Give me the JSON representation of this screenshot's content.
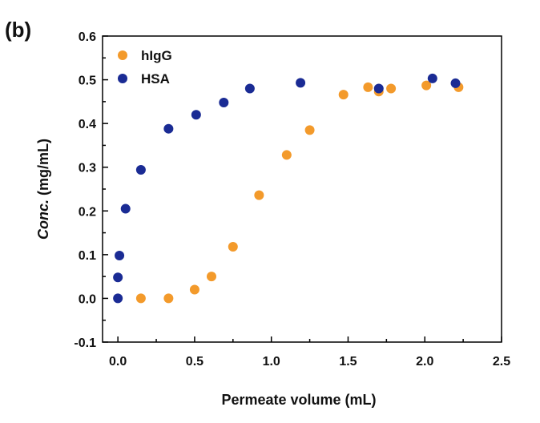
{
  "panel_label": "(b)",
  "chart_data": {
    "type": "scatter",
    "xlabel": "Permeate volume (mL)",
    "ylabel_prefix": "Conc.",
    "ylabel_suffix": " (mg/mL)",
    "xlim": [
      -0.1,
      2.5
    ],
    "ylim": [
      -0.1,
      0.6
    ],
    "x_ticks": [
      0.0,
      0.5,
      1.0,
      1.5,
      2.0,
      2.5
    ],
    "x_tick_labels": [
      "0.0",
      "0.5",
      "1.0",
      "1.5",
      "2.0",
      "2.5"
    ],
    "y_ticks": [
      -0.1,
      0.0,
      0.1,
      0.2,
      0.3,
      0.4,
      0.5,
      0.6
    ],
    "y_tick_labels": [
      "-0.1",
      "0.0",
      "0.1",
      "0.2",
      "0.3",
      "0.4",
      "0.5",
      "0.6"
    ],
    "grid": false,
    "legend_position": "top-left",
    "series": [
      {
        "name": "hIgG",
        "color": "#f39a2b",
        "x": [
          0.15,
          0.33,
          0.5,
          0.61,
          0.75,
          0.92,
          1.1,
          1.25,
          1.47,
          1.63,
          1.7,
          1.78,
          2.01,
          2.22
        ],
        "y": [
          0.0,
          0.0,
          0.02,
          0.05,
          0.118,
          0.236,
          0.328,
          0.385,
          0.466,
          0.483,
          0.473,
          0.48,
          0.487,
          0.483
        ]
      },
      {
        "name": "HSA",
        "color": "#1a2b94",
        "x": [
          0.0,
          0.0,
          0.01,
          0.05,
          0.15,
          0.33,
          0.51,
          0.69,
          0.86,
          1.19,
          1.7,
          2.05,
          2.2
        ],
        "y": [
          0.0,
          0.048,
          0.098,
          0.205,
          0.294,
          0.388,
          0.42,
          0.448,
          0.48,
          0.493,
          0.48,
          0.503,
          0.492
        ]
      }
    ]
  }
}
